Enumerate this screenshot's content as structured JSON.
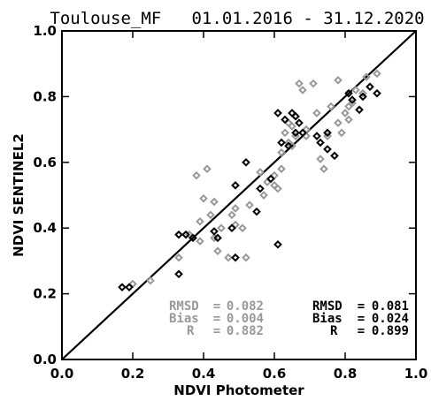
{
  "chart_data": {
    "type": "scatter",
    "title": "Toulouse_MF   01.01.2016 - 31.12.2020",
    "xlabel": "NDVI Photometer",
    "ylabel": "NDVI SENTINEL2",
    "xlim": [
      0.0,
      1.0
    ],
    "ylim": [
      0.0,
      1.0
    ],
    "xticks": [
      "0.0",
      "0.2",
      "0.4",
      "0.6",
      "0.8",
      "1.0"
    ],
    "yticks": [
      "0.0",
      "0.2",
      "0.4",
      "0.6",
      "0.8",
      "1.0"
    ],
    "grid": false,
    "one_to_one_line": true,
    "series": [
      {
        "color": "#999999",
        "marker": "diamond",
        "points": [
          [
            0.2,
            0.23
          ],
          [
            0.25,
            0.24
          ],
          [
            0.33,
            0.31
          ],
          [
            0.36,
            0.38
          ],
          [
            0.38,
            0.56
          ],
          [
            0.39,
            0.42
          ],
          [
            0.39,
            0.36
          ],
          [
            0.4,
            0.49
          ],
          [
            0.41,
            0.58
          ],
          [
            0.42,
            0.44
          ],
          [
            0.43,
            0.48
          ],
          [
            0.43,
            0.37
          ],
          [
            0.44,
            0.33
          ],
          [
            0.45,
            0.4
          ],
          [
            0.47,
            0.31
          ],
          [
            0.48,
            0.44
          ],
          [
            0.49,
            0.46
          ],
          [
            0.49,
            0.41
          ],
          [
            0.51,
            0.4
          ],
          [
            0.52,
            0.31
          ],
          [
            0.53,
            0.47
          ],
          [
            0.56,
            0.57
          ],
          [
            0.57,
            0.5
          ],
          [
            0.58,
            0.54
          ],
          [
            0.6,
            0.53
          ],
          [
            0.6,
            0.56
          ],
          [
            0.61,
            0.52
          ],
          [
            0.62,
            0.63
          ],
          [
            0.62,
            0.58
          ],
          [
            0.63,
            0.69
          ],
          [
            0.64,
            0.66
          ],
          [
            0.64,
            0.72
          ],
          [
            0.65,
            0.71
          ],
          [
            0.65,
            0.65
          ],
          [
            0.66,
            0.68
          ],
          [
            0.67,
            0.84
          ],
          [
            0.68,
            0.82
          ],
          [
            0.69,
            0.68
          ],
          [
            0.69,
            0.7
          ],
          [
            0.71,
            0.84
          ],
          [
            0.72,
            0.75
          ],
          [
            0.73,
            0.61
          ],
          [
            0.74,
            0.58
          ],
          [
            0.75,
            0.68
          ],
          [
            0.76,
            0.77
          ],
          [
            0.78,
            0.85
          ],
          [
            0.78,
            0.72
          ],
          [
            0.79,
            0.69
          ],
          [
            0.8,
            0.75
          ],
          [
            0.81,
            0.73
          ],
          [
            0.81,
            0.77
          ],
          [
            0.82,
            0.78
          ],
          [
            0.83,
            0.82
          ],
          [
            0.85,
            0.81
          ],
          [
            0.86,
            0.86
          ],
          [
            0.89,
            0.87
          ]
        ]
      },
      {
        "color": "#000000",
        "marker": "diamond",
        "points": [
          [
            0.17,
            0.22
          ],
          [
            0.19,
            0.22
          ],
          [
            0.33,
            0.26
          ],
          [
            0.33,
            0.38
          ],
          [
            0.35,
            0.38
          ],
          [
            0.37,
            0.37
          ],
          [
            0.43,
            0.39
          ],
          [
            0.44,
            0.37
          ],
          [
            0.48,
            0.4
          ],
          [
            0.49,
            0.31
          ],
          [
            0.49,
            0.53
          ],
          [
            0.52,
            0.6
          ],
          [
            0.55,
            0.45
          ],
          [
            0.56,
            0.52
          ],
          [
            0.59,
            0.55
          ],
          [
            0.61,
            0.75
          ],
          [
            0.61,
            0.35
          ],
          [
            0.62,
            0.66
          ],
          [
            0.63,
            0.73
          ],
          [
            0.64,
            0.65
          ],
          [
            0.65,
            0.75
          ],
          [
            0.66,
            0.74
          ],
          [
            0.66,
            0.69
          ],
          [
            0.67,
            0.72
          ],
          [
            0.68,
            0.69
          ],
          [
            0.72,
            0.68
          ],
          [
            0.73,
            0.66
          ],
          [
            0.75,
            0.69
          ],
          [
            0.75,
            0.64
          ],
          [
            0.77,
            0.62
          ],
          [
            0.81,
            0.81
          ],
          [
            0.82,
            0.79
          ],
          [
            0.84,
            0.76
          ],
          [
            0.85,
            0.8
          ],
          [
            0.87,
            0.83
          ],
          [
            0.89,
            0.81
          ]
        ]
      }
    ],
    "stats": [
      {
        "color": "#999999",
        "rows": [
          {
            "name": "RMSD",
            "eq": "=",
            "value": "0.082"
          },
          {
            "name": "Bias",
            "eq": "=",
            "value": "0.004"
          },
          {
            "name": "R",
            "eq": "=",
            "value": "0.882"
          }
        ]
      },
      {
        "color": "#000000",
        "rows": [
          {
            "name": "RMSD",
            "eq": "=",
            "value": "0.081"
          },
          {
            "name": "Bias",
            "eq": "=",
            "value": "0.024"
          },
          {
            "name": "R",
            "eq": "=",
            "value": "0.899"
          }
        ]
      }
    ]
  }
}
